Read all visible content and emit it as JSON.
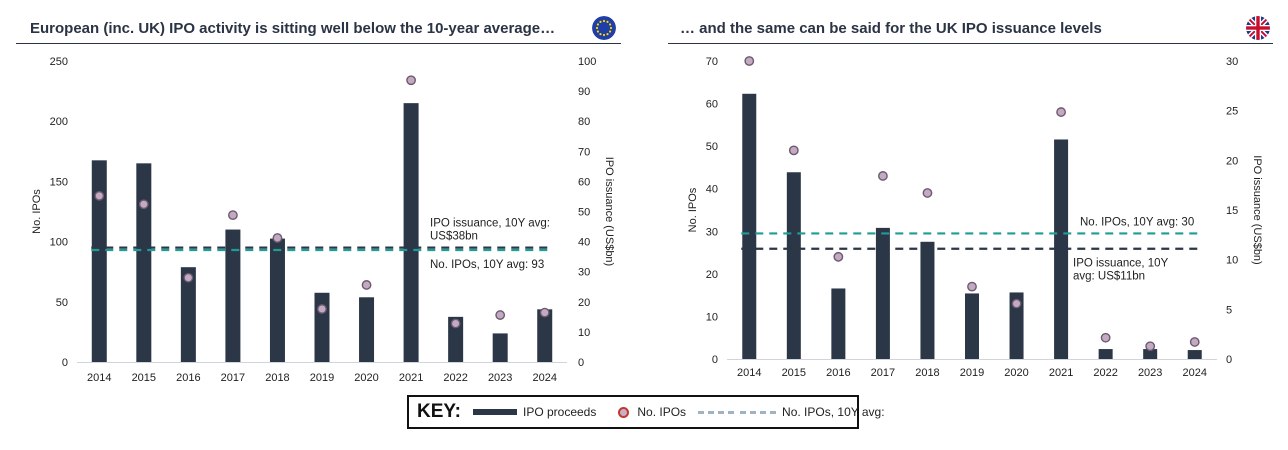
{
  "key": {
    "title": "KEY:",
    "items": [
      {
        "label": "IPO proceeds"
      },
      {
        "label": "No. IPOs"
      },
      {
        "label": "No. IPOs, 10Y avg:"
      }
    ]
  },
  "chart_data": [
    {
      "type": "bar",
      "title": "European (inc. UK) IPO activity is sitting well below the 10-year average…",
      "flag_icon": "eu-flag-icon",
      "categories": [
        "2014",
        "2015",
        "2016",
        "2017",
        "2018",
        "2019",
        "2020",
        "2021",
        "2022",
        "2023",
        "2024"
      ],
      "series": [
        {
          "name": "IPO proceeds",
          "axis": "right",
          "values": [
            67,
            66,
            31.5,
            44,
            41,
            23,
            21.5,
            86,
            15,
            9.5,
            17.5
          ]
        },
        {
          "name": "No. IPOs",
          "axis": "left",
          "values": [
            138,
            131,
            70,
            122,
            103,
            44,
            64,
            234,
            32,
            39,
            41
          ]
        }
      ],
      "ylabel": "No. IPOs",
      "ylim": [
        0,
        250
      ],
      "yticks": [
        "0",
        "50",
        "100",
        "150",
        "200",
        "250"
      ],
      "y2label": "IPO issuance (US$bn)",
      "y2lim": [
        0,
        100
      ],
      "y2ticks": [
        "0",
        "10",
        "20",
        "30",
        "40",
        "50",
        "60",
        "70",
        "80",
        "90",
        "100"
      ],
      "ref_lines": [
        {
          "value": 38,
          "axis": "right",
          "style": "navy",
          "label_lines": [
            "IPO issuance, 10Y avg:",
            "US$38bn"
          ],
          "label_placement": "above"
        },
        {
          "value": 93,
          "axis": "left",
          "style": "teal",
          "label_lines": [
            "No. IPOs, 10Y avg: 93"
          ],
          "label_placement": "below"
        }
      ]
    },
    {
      "type": "bar",
      "title": "… and the same can be said for the UK IPO issuance levels",
      "flag_icon": "uk-flag-icon",
      "categories": [
        "2014",
        "2015",
        "2016",
        "2017",
        "2018",
        "2019",
        "2020",
        "2021",
        "2022",
        "2023",
        "2024"
      ],
      "series": [
        {
          "name": "IPO proceeds",
          "axis": "right",
          "values": [
            26.7,
            18.8,
            7.1,
            13.2,
            11.8,
            6.6,
            6.7,
            22.1,
            1.0,
            1.0,
            0.9
          ]
        },
        {
          "name": "No. IPOs",
          "axis": "left",
          "values": [
            70,
            49,
            24,
            43,
            39,
            17,
            13,
            58,
            5,
            3,
            4
          ]
        }
      ],
      "ylabel": "No. IPOs",
      "ylim": [
        0,
        70
      ],
      "yticks": [
        "0",
        "10",
        "20",
        "30",
        "40",
        "50",
        "60",
        "70"
      ],
      "y2label": "IPO issuance (US$bn)",
      "y2lim": [
        0,
        30
      ],
      "y2ticks": [
        "0",
        "5",
        "10",
        "15",
        "20",
        "25",
        "30"
      ],
      "ref_lines": [
        {
          "value": 29.5,
          "axis": "left",
          "style": "teal",
          "label_lines": [
            "No. IPOs, 10Y avg: 30"
          ],
          "label_placement": "above"
        },
        {
          "value": 11.1,
          "axis": "right",
          "style": "navy",
          "label_lines": [
            "IPO issuance, 10Y",
            "avg: US$11bn"
          ],
          "label_placement": "below"
        }
      ]
    }
  ]
}
